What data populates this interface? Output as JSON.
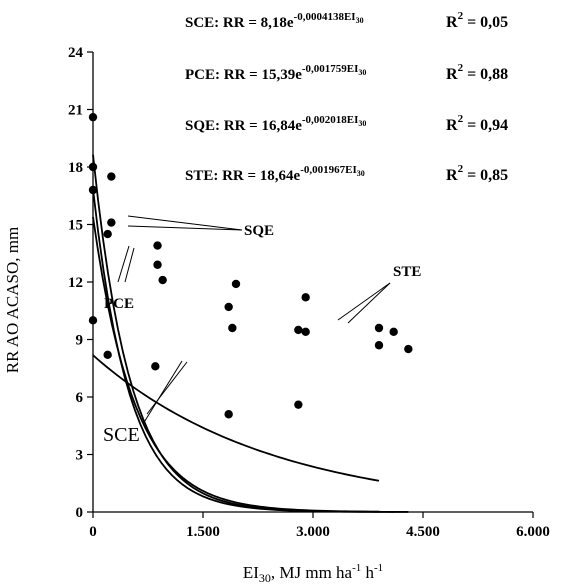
{
  "chart_data": {
    "type": "scatter",
    "xlabel_main": "EI",
    "xlabel_sub": "30",
    "xlabel_tail": ", MJ mm ha",
    "xlabel_exp1": "-1",
    "xlabel_h": " h",
    "xlabel_exp2": "-1",
    "ylabel": "RR AO ACASO, mm",
    "xlim": [
      0,
      6000
    ],
    "ylim": [
      0,
      24
    ],
    "xticks": [
      0,
      1500,
      3000,
      4500,
      6000
    ],
    "xtick_labels": [
      "0",
      "1.500",
      "3.000",
      "4.500",
      "6.000"
    ],
    "yticks": [
      0,
      3,
      6,
      9,
      12,
      15,
      18,
      21,
      24
    ],
    "ytick_labels": [
      "0",
      "3",
      "6",
      "9",
      "12",
      "15",
      "18",
      "21",
      "24"
    ],
    "grid": false,
    "points": [
      {
        "x": 0,
        "y": 20.6
      },
      {
        "x": 0,
        "y": 18.0
      },
      {
        "x": 0,
        "y": 16.8
      },
      {
        "x": 0,
        "y": 10.0
      },
      {
        "x": 250,
        "y": 17.5
      },
      {
        "x": 250,
        "y": 15.1
      },
      {
        "x": 200,
        "y": 14.5
      },
      {
        "x": 200,
        "y": 8.2
      },
      {
        "x": 880,
        "y": 13.9
      },
      {
        "x": 880,
        "y": 12.9
      },
      {
        "x": 950,
        "y": 12.1
      },
      {
        "x": 850,
        "y": 7.6
      },
      {
        "x": 1950,
        "y": 11.9
      },
      {
        "x": 1850,
        "y": 10.7
      },
      {
        "x": 1900,
        "y": 9.6
      },
      {
        "x": 1850,
        "y": 5.1
      },
      {
        "x": 2800,
        "y": 9.5
      },
      {
        "x": 2900,
        "y": 11.2
      },
      {
        "x": 2900,
        "y": 9.4
      },
      {
        "x": 2800,
        "y": 5.6
      },
      {
        "x": 3900,
        "y": 9.6
      },
      {
        "x": 3900,
        "y": 8.7
      },
      {
        "x": 4100,
        "y": 9.4
      },
      {
        "x": 4300,
        "y": 8.5
      }
    ],
    "series": [
      {
        "name": "SCE",
        "a": 8.18,
        "b": -0.0004138,
        "x_range": [
          0,
          3900
        ]
      },
      {
        "name": "PCE",
        "a": 15.39,
        "b": -0.001759,
        "x_range": [
          0,
          3900
        ]
      },
      {
        "name": "SQE",
        "a": 16.84,
        "b": -0.002018,
        "x_range": [
          0,
          4300
        ]
      },
      {
        "name": "STE",
        "a": 18.64,
        "b": -0.001967,
        "x_range": [
          0,
          4100
        ]
      }
    ],
    "equations": [
      {
        "prefix": "SCE: RR = 8,18e",
        "exp": "-0,0004138EI",
        "exp_sub": "30",
        "r2_label": "R",
        "r2_sup": "2",
        "r2_value": " = 0,05"
      },
      {
        "prefix": "PCE: RR = 15,39e",
        "exp": "-0,001759EI",
        "exp_sub": "30",
        "r2_label": "R",
        "r2_sup": "2",
        "r2_value": " = 0,88"
      },
      {
        "prefix": "SQE: RR = 16,84e",
        "exp": "-0,002018EI",
        "exp_sub": "30",
        "r2_label": "R",
        "r2_sup": "2",
        "r2_value": " = 0,94"
      },
      {
        "prefix": "STE: RR = 18,64e",
        "exp": "-0,001967EI",
        "exp_sub": "30",
        "r2_label": "R",
        "r2_sup": "2",
        "r2_value": " = 0,85"
      }
    ],
    "curve_labels": [
      "SQE",
      "STE",
      "PCE",
      "SCE"
    ]
  }
}
